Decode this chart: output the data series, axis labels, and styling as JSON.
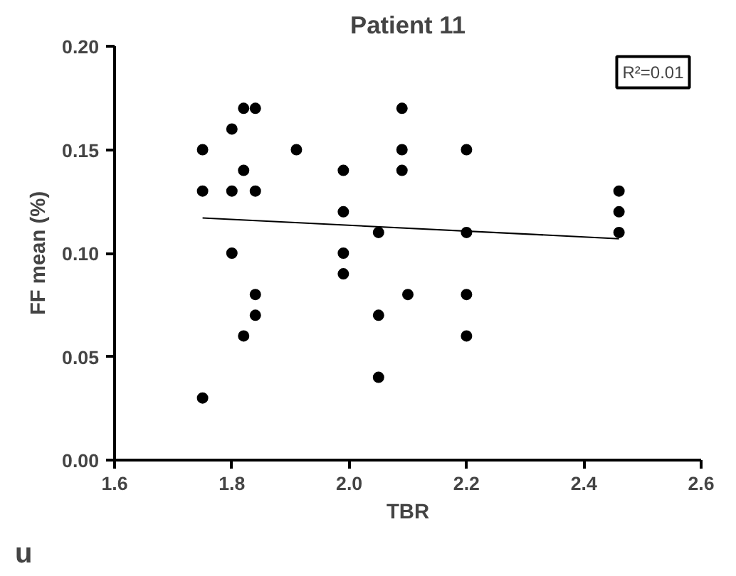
{
  "chart_data": {
    "type": "scatter",
    "title": "Patient 11",
    "xlabel": "TBR",
    "ylabel": "FF mean (%)",
    "annotations": [
      "R²=0.01",
      "u"
    ],
    "xlim": [
      1.6,
      2.6
    ],
    "xticks": [
      1.6,
      1.8,
      {
        "value": 2.0,
        "label": "2.0"
      },
      2.2,
      2.4,
      2.6
    ],
    "ylim": [
      0,
      0.2
    ],
    "yticks": [
      {
        "value": 0,
        "label": "0.00"
      },
      {
        "value": 0.05,
        "label": "0.05"
      },
      {
        "value": 0.1,
        "label": "0.10"
      },
      {
        "value": 0.15,
        "label": "0.15"
      },
      {
        "value": 0.2,
        "label": "0.20"
      }
    ],
    "grid": false,
    "series": [
      {
        "color": "#000000",
        "marker": "circle",
        "x": [
          1.75,
          1.75,
          1.75,
          1.8,
          1.8,
          1.8,
          1.82,
          1.82,
          1.82,
          1.84,
          1.84,
          1.84,
          1.84,
          1.91,
          1.99,
          1.99,
          1.99,
          1.99,
          2.05,
          2.05,
          2.05,
          2.09,
          2.09,
          2.09,
          2.1,
          2.2,
          2.2,
          2.2,
          2.2,
          2.46,
          2.46,
          2.46
        ],
        "values": [
          0.15,
          0.13,
          0.03,
          0.16,
          0.13,
          0.1,
          0.17,
          0.14,
          0.06,
          0.17,
          0.13,
          0.08,
          0.07,
          0.15,
          0.14,
          0.12,
          0.1,
          0.09,
          0.11,
          0.07,
          0.04,
          0.17,
          0.15,
          0.14,
          0.08,
          0.15,
          0.11,
          0.08,
          0.06,
          0.13,
          0.12,
          0.11
        ]
      },
      {
        "type": "line",
        "color": "#000000",
        "x": [
          1.75,
          2.46
        ],
        "values": [
          0.117,
          0.107
        ]
      }
    ]
  }
}
